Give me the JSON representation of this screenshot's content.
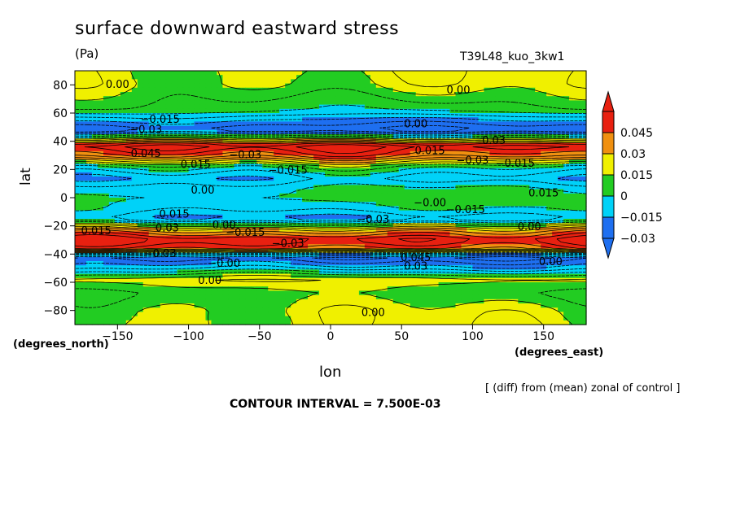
{
  "chart_data": {
    "type": "heatmap",
    "title": "surface downward eastward stress",
    "units": "(Pa)",
    "run_label": "T39L48_kuo_3kw1",
    "xlabel": "lon",
    "ylabel": "lat",
    "x_units": "(degrees_east)",
    "y_units": "(degrees_north)",
    "xlim": [
      -180,
      180
    ],
    "ylim": [
      -90,
      90
    ],
    "x_ticks": [
      -150,
      -100,
      -50,
      0,
      50,
      100,
      150
    ],
    "x_tick_labels": [
      "−150",
      "−100",
      "−50",
      "0",
      "50",
      "100",
      "150"
    ],
    "y_ticks": [
      80,
      60,
      40,
      20,
      0,
      -20,
      -40,
      -60,
      -80
    ],
    "y_tick_labels": [
      "80",
      "60",
      "40",
      "20",
      "0",
      "−20",
      "−40",
      "−60",
      "−80"
    ],
    "note": "[ (diff) from (mean) zonal of control ]",
    "contour_interval_text": "CONTOUR INTERVAL = 7.500E-03",
    "contour_interval": 0.0075,
    "colorbar": {
      "labels": [
        "0.045",
        "0.03",
        "0.015",
        "0",
        "−0.015",
        "−0.03"
      ],
      "levels": [
        -0.045,
        -0.03,
        -0.015,
        0,
        0.015,
        0.03,
        0.045
      ],
      "colors": [
        "#1e6ff0",
        "#00d2f8",
        "#22cc22",
        "#f0f000",
        "#f09010",
        "#e82010"
      ],
      "under_color": "#1e6ff0",
      "over_color": "#e82010"
    },
    "zonal_profile": [
      {
        "lat": 90,
        "value": 0.003
      },
      {
        "lat": 80,
        "value": 0.002
      },
      {
        "lat": 70,
        "value": -0.006
      },
      {
        "lat": 62,
        "value": -0.012
      },
      {
        "lat": 55,
        "value": -0.03
      },
      {
        "lat": 48,
        "value": -0.045
      },
      {
        "lat": 42,
        "value": 0.0
      },
      {
        "lat": 37,
        "value": 0.045
      },
      {
        "lat": 30,
        "value": 0.03
      },
      {
        "lat": 22,
        "value": -0.012
      },
      {
        "lat": 14,
        "value": -0.028
      },
      {
        "lat": 6,
        "value": -0.015
      },
      {
        "lat": 0,
        "value": -0.012
      },
      {
        "lat": -8,
        "value": -0.018
      },
      {
        "lat": -15,
        "value": -0.03
      },
      {
        "lat": -23,
        "value": 0.02
      },
      {
        "lat": -30,
        "value": 0.045
      },
      {
        "lat": -36,
        "value": 0.03
      },
      {
        "lat": -42,
        "value": -0.045
      },
      {
        "lat": -50,
        "value": -0.025
      },
      {
        "lat": -58,
        "value": 0.005
      },
      {
        "lat": -68,
        "value": -0.006
      },
      {
        "lat": -80,
        "value": 0.002
      },
      {
        "lat": -90,
        "value": 0.003
      }
    ],
    "contour_labels": [
      {
        "text": "0.00",
        "lon": -150,
        "lat": 80
      },
      {
        "text": "0.00",
        "lon": 90,
        "lat": 76
      },
      {
        "text": "−0.015",
        "lon": -120,
        "lat": 55
      },
      {
        "text": "−0.03",
        "lon": -130,
        "lat": 48
      },
      {
        "text": "0.00",
        "lon": 60,
        "lat": 52
      },
      {
        "text": "0.03",
        "lon": 115,
        "lat": 40
      },
      {
        "text": "0.015",
        "lon": 70,
        "lat": 33
      },
      {
        "text": "−0.03",
        "lon": 100,
        "lat": 26
      },
      {
        "text": "−0.015",
        "lon": 130,
        "lat": 24
      },
      {
        "text": "0.045",
        "lon": -130,
        "lat": 31
      },
      {
        "text": "−0.03",
        "lon": -60,
        "lat": 30
      },
      {
        "text": "−0.015",
        "lon": -30,
        "lat": 19
      },
      {
        "text": "0.015",
        "lon": -95,
        "lat": 23
      },
      {
        "text": "0.00",
        "lon": -90,
        "lat": 5
      },
      {
        "text": "0.015",
        "lon": 150,
        "lat": 3
      },
      {
        "text": "−0.00",
        "lon": 70,
        "lat": -4
      },
      {
        "text": "−0.015",
        "lon": 95,
        "lat": -9
      },
      {
        "text": "−0.03",
        "lon": 30,
        "lat": -16
      },
      {
        "text": "0.015",
        "lon": -110,
        "lat": -12
      },
      {
        "text": "0.03",
        "lon": -115,
        "lat": -22
      },
      {
        "text": "0.015",
        "lon": -165,
        "lat": -24
      },
      {
        "text": "0.00",
        "lon": -75,
        "lat": -20
      },
      {
        "text": "−0.015",
        "lon": -60,
        "lat": -25
      },
      {
        "text": "−0.03",
        "lon": -30,
        "lat": -33
      },
      {
        "text": "−0.03",
        "lon": -120,
        "lat": -40
      },
      {
        "text": "−0.00",
        "lon": -75,
        "lat": -47
      },
      {
        "text": "0.00",
        "lon": 140,
        "lat": -21
      },
      {
        "text": "0.045",
        "lon": 60,
        "lat": -43
      },
      {
        "text": "0.03",
        "lon": 60,
        "lat": -49
      },
      {
        "text": "0.00",
        "lon": 155,
        "lat": -46
      },
      {
        "text": "0.00",
        "lon": -85,
        "lat": -59
      },
      {
        "text": "0.00",
        "lon": 30,
        "lat": -82
      }
    ]
  }
}
